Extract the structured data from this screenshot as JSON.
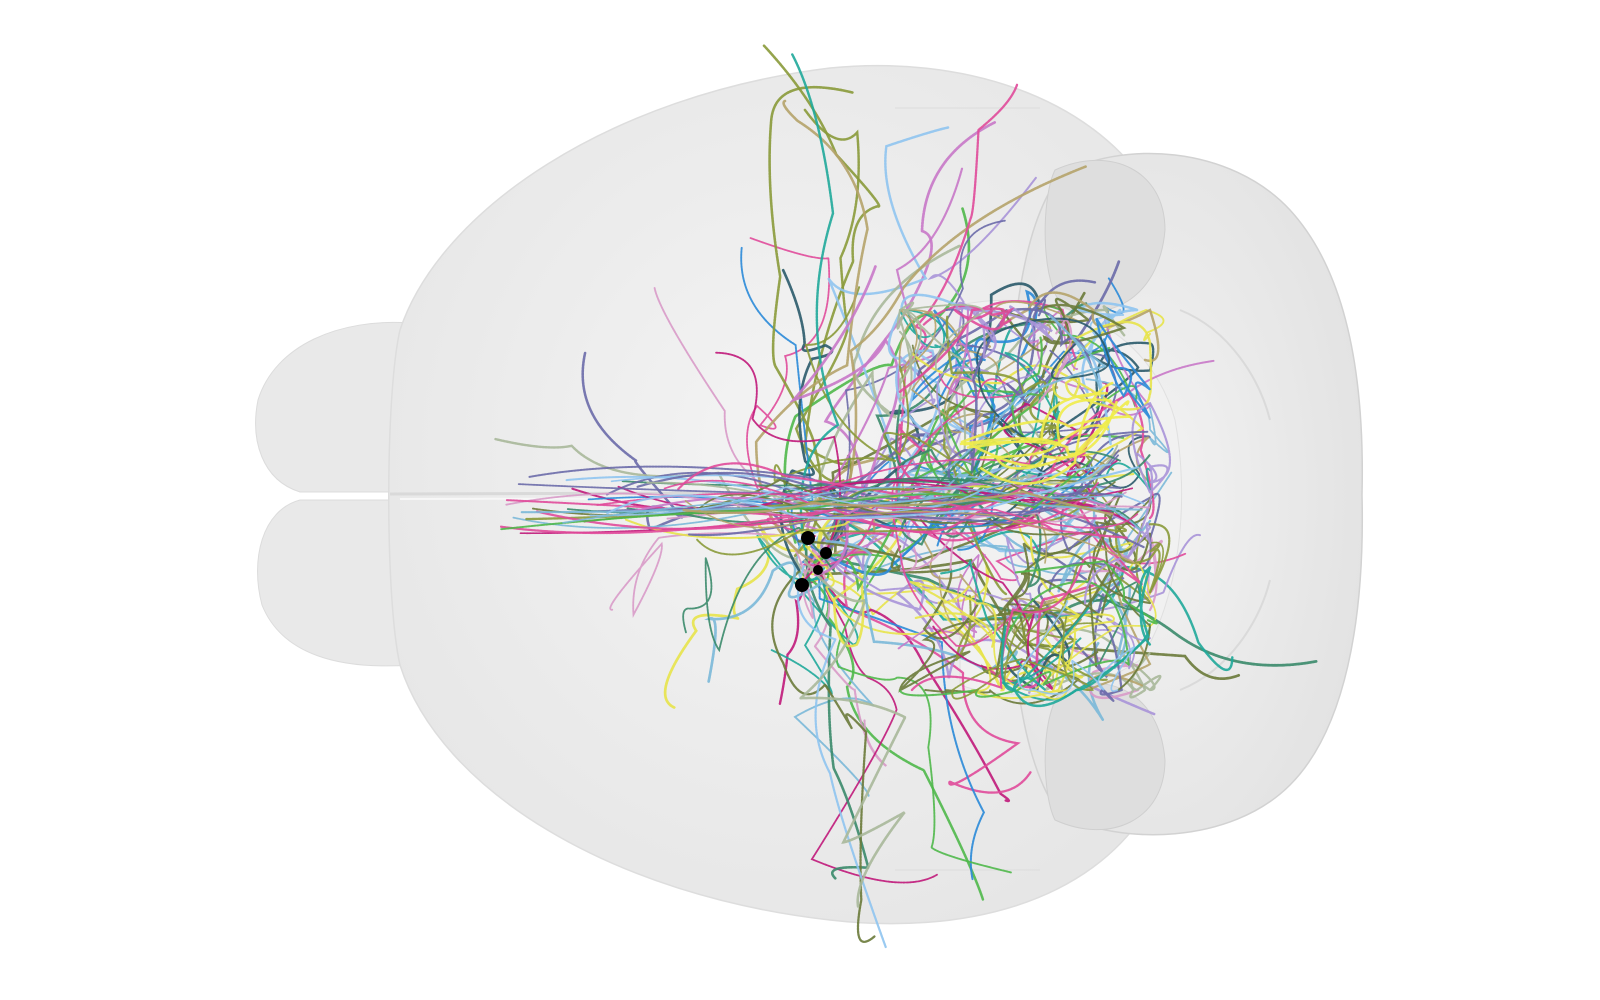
{
  "scene": {
    "background_color": "#ffffff",
    "brain_fill": "#ececec",
    "brain_edge": "#d6d6d6",
    "brain_highlight": "#f6f6f6",
    "soma_color": "#000000",
    "neuron_colors": [
      "#8a9a3a",
      "#b5a36a",
      "#c0187a",
      "#2a8ad8",
      "#4fb84a",
      "#1fa89a",
      "#a993d8",
      "#e7e34a",
      "#6a6aa8",
      "#8fc4f0",
      "#e04a9a",
      "#3a8a6a",
      "#6a7a3a",
      "#a8b89a",
      "#7ab8d8",
      "#c878c8",
      "#2a5a6a",
      "#d89ac8"
    ]
  }
}
